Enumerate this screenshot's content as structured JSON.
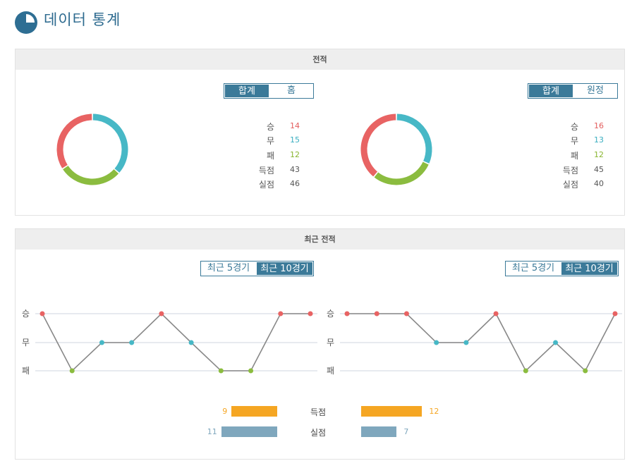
{
  "header": {
    "title": "데이터 통계"
  },
  "colors": {
    "win": "#e86363",
    "draw": "#47b8c6",
    "loss": "#8bbc3f",
    "goals_for": "#f5a623",
    "goals_against": "#7fa7bd",
    "accent": "#3b7a99"
  },
  "record": {
    "title": "전적",
    "left": {
      "toggle": [
        {
          "label": "합계",
          "active": true
        },
        {
          "label": "홈",
          "active": false
        }
      ],
      "stats": [
        {
          "label": "승",
          "value": "14"
        },
        {
          "label": "무",
          "value": "15"
        },
        {
          "label": "패",
          "value": "12"
        },
        {
          "label": "득점",
          "value": "43"
        },
        {
          "label": "실점",
          "value": "46"
        }
      ]
    },
    "right": {
      "toggle": [
        {
          "label": "합계",
          "active": true
        },
        {
          "label": "원정",
          "active": false
        }
      ],
      "stats": [
        {
          "label": "승",
          "value": "16"
        },
        {
          "label": "무",
          "value": "13"
        },
        {
          "label": "패",
          "value": "12"
        },
        {
          "label": "득점",
          "value": "45"
        },
        {
          "label": "실점",
          "value": "40"
        }
      ]
    }
  },
  "recent": {
    "title": "최근 전적",
    "left": {
      "toggle": [
        {
          "label": "최근 5경기",
          "active": false
        },
        {
          "label": "최근 10경기",
          "active": true
        }
      ],
      "results": [
        "승",
        "패",
        "무",
        "무",
        "승",
        "무",
        "패",
        "패",
        "승",
        "승"
      ]
    },
    "right": {
      "toggle": [
        {
          "label": "최근 5경기",
          "active": false
        },
        {
          "label": "최근 10경기",
          "active": true
        }
      ],
      "results": [
        "승",
        "승",
        "승",
        "무",
        "무",
        "승",
        "패",
        "무",
        "패",
        "승"
      ]
    },
    "y_labels": [
      "승",
      "무",
      "패"
    ],
    "bars": [
      {
        "label": "득점",
        "left": "9",
        "right": "12"
      },
      {
        "label": "실점",
        "left": "11",
        "right": "7"
      }
    ]
  },
  "chart_data": [
    {
      "type": "pie",
      "title": "",
      "categories": [
        "승",
        "무",
        "패"
      ],
      "values": [
        14,
        15,
        12
      ]
    },
    {
      "type": "pie",
      "title": "",
      "categories": [
        "승",
        "무",
        "패"
      ],
      "values": [
        16,
        13,
        12
      ]
    },
    {
      "type": "line",
      "title": "",
      "x": [
        1,
        2,
        3,
        4,
        5,
        6,
        7,
        8,
        9,
        10
      ],
      "y_categories": [
        "승",
        "무",
        "패"
      ],
      "values": [
        "승",
        "패",
        "무",
        "무",
        "승",
        "무",
        "패",
        "패",
        "승",
        "승"
      ]
    },
    {
      "type": "line",
      "title": "",
      "x": [
        1,
        2,
        3,
        4,
        5,
        6,
        7,
        8,
        9,
        10
      ],
      "y_categories": [
        "승",
        "무",
        "패"
      ],
      "values": [
        "승",
        "승",
        "승",
        "무",
        "무",
        "승",
        "패",
        "무",
        "패",
        "승"
      ]
    },
    {
      "type": "bar",
      "title": "",
      "categories": [
        "득점",
        "실점"
      ],
      "series": [
        {
          "values": [
            9,
            11
          ]
        },
        {
          "values": [
            12,
            7
          ]
        }
      ]
    }
  ]
}
